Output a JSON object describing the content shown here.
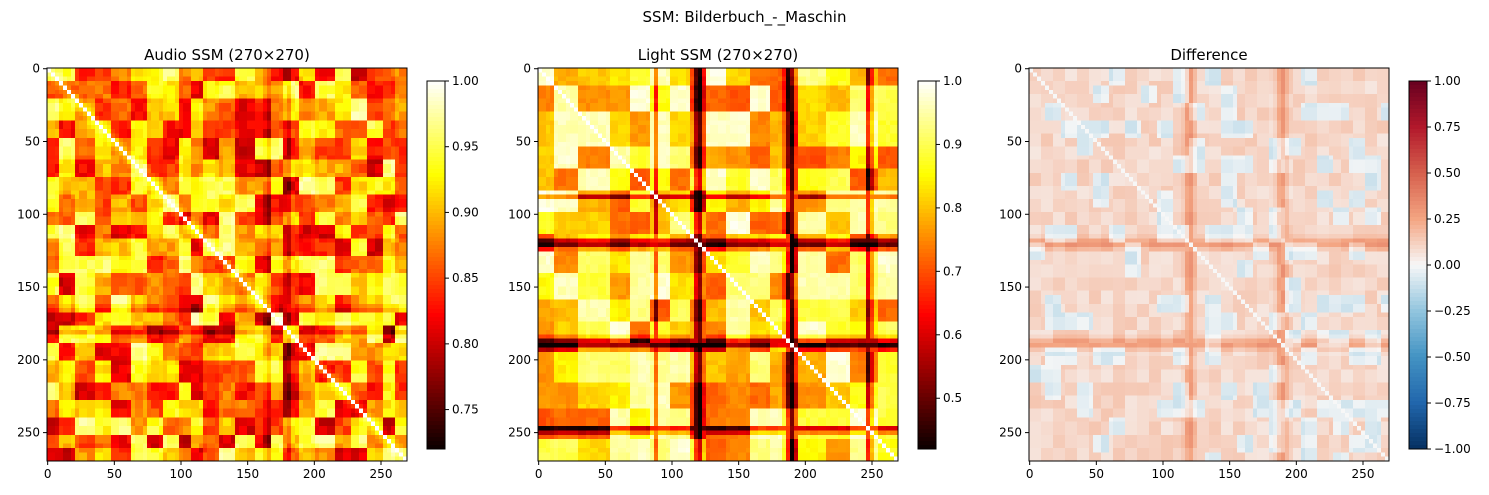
{
  "figure": {
    "suptitle": "SSM: Bilderbuch_-_Maschin"
  },
  "chart_data": [
    {
      "type": "heatmap",
      "title": "Audio SSM (270×270)",
      "matrix_size": 270,
      "colormap": "hot",
      "vmin": 0.72,
      "vmax": 1.0,
      "colorbar_ticks": [
        0.75,
        0.8,
        0.85,
        0.9,
        0.95,
        1.0
      ],
      "colorbar_labels": [
        "0.75",
        "0.80",
        "0.85",
        "0.90",
        "0.95",
        "1.00"
      ],
      "x_ticks": [
        0,
        50,
        100,
        150,
        200,
        250
      ],
      "y_ticks": [
        0,
        50,
        100,
        150,
        200,
        250
      ],
      "block_boundaries": [
        0,
        10,
        22,
        35,
        48,
        62,
        75,
        88,
        98,
        108,
        118,
        130,
        142,
        155,
        168,
        178,
        190,
        202,
        215,
        228,
        240,
        252,
        262,
        270
      ],
      "dark_bands": [
        {
          "center": 180,
          "width": 4
        },
        {
          "center": 165,
          "width": 3
        }
      ]
    },
    {
      "type": "heatmap",
      "title": "Light SSM (270×270)",
      "matrix_size": 270,
      "colormap": "hot",
      "vmin": 0.42,
      "vmax": 1.0,
      "colorbar_ticks": [
        0.5,
        0.6,
        0.7,
        0.8,
        0.9,
        1.0
      ],
      "colorbar_labels": [
        "0.5",
        "0.6",
        "0.7",
        "0.8",
        "0.9",
        "1.0"
      ],
      "x_ticks": [
        0,
        50,
        100,
        150,
        200,
        250
      ],
      "y_ticks": [
        0,
        50,
        100,
        150,
        200,
        250
      ],
      "block_boundaries": [
        0,
        12,
        30,
        55,
        70,
        85,
        100,
        115,
        125,
        140,
        160,
        175,
        188,
        195,
        215,
        235,
        255,
        270
      ],
      "dark_bands": [
        {
          "center": 120,
          "width": 6
        },
        {
          "center": 189,
          "width": 6
        },
        {
          "center": 248,
          "width": 3
        },
        {
          "center": 87,
          "width": 2
        }
      ]
    },
    {
      "type": "heatmap",
      "title": "Difference",
      "matrix_size": 270,
      "colormap": "RdBu_r",
      "vmin": -1.0,
      "vmax": 1.0,
      "colorbar_ticks": [
        -1.0,
        -0.75,
        -0.5,
        -0.25,
        0.0,
        0.25,
        0.5,
        0.75,
        1.0
      ],
      "colorbar_labels": [
        "−1.00",
        "−0.75",
        "−0.50",
        "−0.25",
        "0.00",
        "0.25",
        "0.50",
        "0.75",
        "1.00"
      ],
      "x_ticks": [
        0,
        50,
        100,
        150,
        200,
        250
      ],
      "y_ticks": [
        0,
        50,
        100,
        150,
        200,
        250
      ],
      "positive_bands": [
        {
          "center": 120,
          "width": 6
        },
        {
          "center": 189,
          "width": 6
        }
      ]
    }
  ]
}
